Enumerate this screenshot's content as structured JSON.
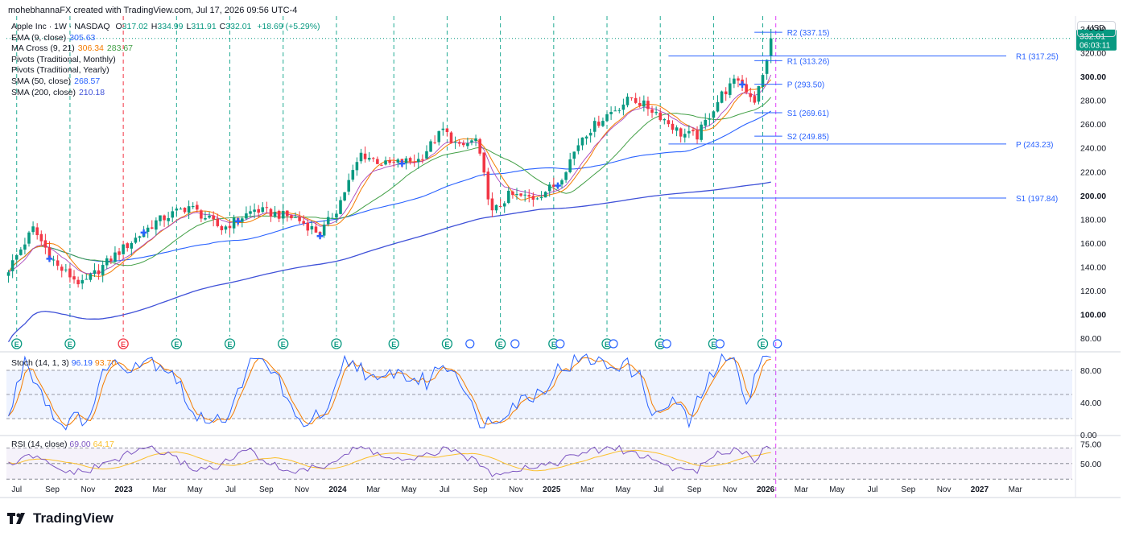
{
  "attribution": "mohebhannaFX created with TradingView.com, Jul 17, 2026 09:56 UTC-4",
  "currency_button": "USD",
  "logo_text": "TradingView",
  "colors": {
    "up": "#089981",
    "down": "#f23645",
    "ema": "#2962ff",
    "ma_fast": "#f57c00",
    "ma_slow": "#43a047",
    "sma50": "#2962ff",
    "sma200": "#3f51d8",
    "stoch_k": "#2962ff",
    "stoch_d": "#f57c00",
    "rsi": "#7e57c2",
    "rsi_ma": "#fbc02d",
    "pivot": "#2962ff",
    "event_line": "#22ab94",
    "split_line": "#e040fb"
  },
  "legend": {
    "symbol": "Apple Inc · 1W · NASDAQ",
    "ohlc": [
      {
        "k": "O",
        "v": "317.02"
      },
      {
        "k": "H",
        "v": "334.99"
      },
      {
        "k": "L",
        "v": "311.91"
      },
      {
        "k": "C",
        "v": "332.01"
      }
    ],
    "change": "+18.69 (+5.29%)",
    "lines": [
      {
        "label": "EMA (9, close)",
        "values": [
          "305.63"
        ]
      },
      {
        "label": "MA Cross (9, 21)",
        "values": [
          "306.34",
          "283.67"
        ]
      },
      {
        "label": "Pivots (Traditional, Monthly)",
        "values": []
      },
      {
        "label": "Pivots (Traditional, Yearly)",
        "values": []
      },
      {
        "label": "SMA (50, close)",
        "values": [
          "268.57"
        ]
      },
      {
        "label": "SMA (200, close)",
        "values": [
          "210.18"
        ]
      }
    ]
  },
  "price_badge": {
    "price": "332.01",
    "countdown": "06:03:11"
  },
  "chart_data": {
    "type": "candlestick",
    "title": "Apple Inc · 1W · NASDAQ",
    "x_ticks": [
      "Jul",
      "Sep",
      "Nov",
      "2023",
      "Mar",
      "May",
      "Jul",
      "Sep",
      "Nov",
      "2024",
      "Mar",
      "May",
      "Jul",
      "Sep",
      "Nov",
      "2025",
      "Mar",
      "May",
      "Jul",
      "Sep",
      "Nov",
      "2026",
      "Mar",
      "May",
      "Jul",
      "Sep",
      "Nov",
      "2027",
      "Mar"
    ],
    "y_ticks": [
      "340.00",
      "320.00",
      "300.00",
      "280.00",
      "260.00",
      "240.00",
      "220.00",
      "200.00",
      "180.00",
      "160.00",
      "140.00",
      "120.00",
      "100.00",
      "80.00"
    ],
    "ylim": [
      72,
      344
    ],
    "price_anchors": [
      [
        0,
        138
      ],
      [
        6,
        172
      ],
      [
        12,
        140
      ],
      [
        18,
        125
      ],
      [
        26,
        150
      ],
      [
        36,
        178
      ],
      [
        44,
        191
      ],
      [
        52,
        172
      ],
      [
        60,
        188
      ],
      [
        70,
        181
      ],
      [
        76,
        168
      ],
      [
        80,
        188
      ],
      [
        86,
        235
      ],
      [
        92,
        226
      ],
      [
        100,
        230
      ],
      [
        106,
        255
      ],
      [
        110,
        240
      ],
      [
        114,
        247
      ],
      [
        118,
        185
      ],
      [
        122,
        200
      ],
      [
        128,
        198
      ],
      [
        134,
        210
      ],
      [
        140,
        250
      ],
      [
        146,
        268
      ],
      [
        152,
        282
      ],
      [
        158,
        270
      ],
      [
        164,
        252
      ],
      [
        168,
        250
      ],
      [
        174,
        285
      ],
      [
        178,
        298
      ],
      [
        182,
        280
      ],
      [
        184,
        300
      ],
      [
        186,
        332
      ]
    ],
    "pivots_monthly": [
      {
        "label": "R2 (337.15)",
        "value": 337.15
      },
      {
        "label": "R1 (313.26)",
        "value": 313.26
      },
      {
        "label": "P (293.50)",
        "value": 293.5
      },
      {
        "label": "S1 (269.61)",
        "value": 269.61
      },
      {
        "label": "S2 (249.85)",
        "value": 249.85
      }
    ],
    "pivots_yearly": [
      {
        "label": "R1 (317.25)",
        "value": 317.25
      },
      {
        "label": "P (243.23)",
        "value": 243.23
      },
      {
        "label": "S1 (197.84)",
        "value": 197.84
      }
    ],
    "stochastic": {
      "label": "Stoch (14, 1, 3)",
      "k": "96.19",
      "d": "93.70",
      "y_ticks": [
        "80.00",
        "40.00",
        "0.00"
      ],
      "band": [
        20,
        80
      ],
      "k_anchors": [
        [
          0,
          20
        ],
        [
          4,
          95
        ],
        [
          8,
          55
        ],
        [
          12,
          15
        ],
        [
          16,
          18
        ],
        [
          20,
          25
        ],
        [
          24,
          90
        ],
        [
          28,
          85
        ],
        [
          34,
          95
        ],
        [
          40,
          80
        ],
        [
          46,
          15
        ],
        [
          50,
          25
        ],
        [
          54,
          20
        ],
        [
          58,
          85
        ],
        [
          62,
          90
        ],
        [
          66,
          70
        ],
        [
          70,
          15
        ],
        [
          74,
          20
        ],
        [
          78,
          25
        ],
        [
          82,
          90
        ],
        [
          86,
          85
        ],
        [
          90,
          60
        ],
        [
          94,
          80
        ],
        [
          98,
          70
        ],
        [
          102,
          65
        ],
        [
          106,
          90
        ],
        [
          110,
          75
        ],
        [
          114,
          20
        ],
        [
          118,
          15
        ],
        [
          122,
          35
        ],
        [
          126,
          45
        ],
        [
          130,
          55
        ],
        [
          134,
          80
        ],
        [
          138,
          90
        ],
        [
          142,
          95
        ],
        [
          146,
          85
        ],
        [
          150,
          90
        ],
        [
          154,
          70
        ],
        [
          158,
          20
        ],
        [
          162,
          45
        ],
        [
          166,
          15
        ],
        [
          170,
          60
        ],
        [
          174,
          95
        ],
        [
          178,
          85
        ],
        [
          180,
          40
        ],
        [
          184,
          96
        ]
      ]
    },
    "rsi": {
      "label": "RSI (14, close)",
      "value": "69.00",
      "ma": "64.17",
      "y_ticks": [
        "75.00",
        "50.00"
      ],
      "band": [
        30,
        70
      ],
      "anchors": [
        [
          0,
          48
        ],
        [
          6,
          60
        ],
        [
          12,
          42
        ],
        [
          18,
          38
        ],
        [
          26,
          55
        ],
        [
          34,
          72
        ],
        [
          40,
          58
        ],
        [
          46,
          42
        ],
        [
          52,
          48
        ],
        [
          58,
          68
        ],
        [
          66,
          44
        ],
        [
          70,
          40
        ],
        [
          76,
          45
        ],
        [
          80,
          55
        ],
        [
          86,
          72
        ],
        [
          92,
          58
        ],
        [
          98,
          52
        ],
        [
          106,
          68
        ],
        [
          112,
          58
        ],
        [
          118,
          38
        ],
        [
          126,
          45
        ],
        [
          134,
          52
        ],
        [
          140,
          64
        ],
        [
          148,
          70
        ],
        [
          156,
          58
        ],
        [
          162,
          44
        ],
        [
          168,
          42
        ],
        [
          174,
          65
        ],
        [
          178,
          70
        ],
        [
          182,
          55
        ],
        [
          184,
          69
        ]
      ]
    },
    "earnings_weeks": [
      2,
      15,
      28,
      41,
      54,
      67,
      80,
      94,
      107,
      120,
      133,
      146,
      159,
      172,
      184
    ],
    "dividend_weeks": [
      111,
      122,
      133,
      146,
      159,
      172,
      186
    ],
    "split_week": 186
  }
}
